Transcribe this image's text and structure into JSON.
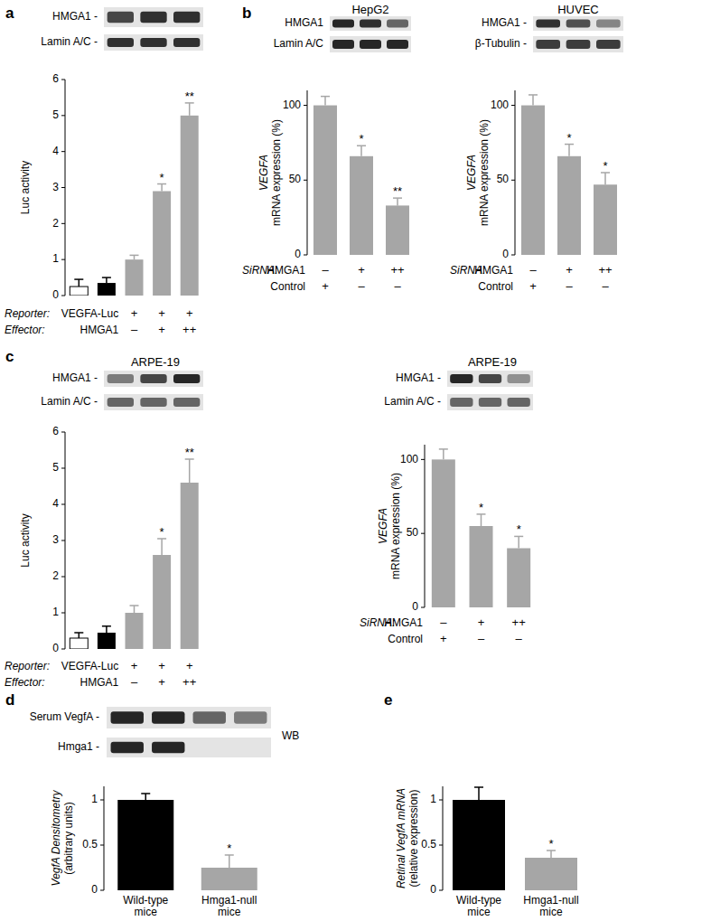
{
  "chart_data": [
    {
      "panel": "a",
      "type": "bar",
      "blots": [
        {
          "label": "HMGA1 -",
          "bands": [
            0.75,
            0.85,
            0.85
          ]
        },
        {
          "label": "Lamin A/C -",
          "bands": [
            0.85,
            0.85,
            0.85
          ]
        }
      ],
      "categories": [
        null,
        null,
        null,
        null,
        null
      ],
      "values": [
        0.25,
        0.35,
        1.0,
        2.9,
        5.0
      ],
      "errors": [
        0.2,
        0.15,
        0.12,
        0.2,
        0.35
      ],
      "colors": [
        "#ffffff",
        "#000000",
        "#a6a6a6",
        "#a6a6a6",
        "#a6a6a6"
      ],
      "significance": [
        null,
        null,
        null,
        "*",
        "**"
      ],
      "ylim": [
        0,
        6
      ],
      "yticks": [
        0,
        1,
        2,
        3,
        4,
        5,
        6
      ],
      "y_label": [
        "Luc activity"
      ],
      "conditions": [
        {
          "label": "Reporter:",
          "item": "VEGFA-Luc",
          "marks": [
            null,
            null,
            "+",
            "+",
            "+"
          ]
        },
        {
          "label": "Effector:",
          "item": "HMGA1",
          "marks": [
            null,
            null,
            "–",
            "+",
            "++"
          ]
        }
      ]
    },
    {
      "panel": "b",
      "type": "bar",
      "title": "HepG2",
      "blots": [
        {
          "label": "HMGA1",
          "bands": [
            0.9,
            0.85,
            0.6
          ]
        },
        {
          "label": "Lamin A/C",
          "bands": [
            0.9,
            0.9,
            0.9
          ]
        }
      ],
      "categories": [
        null,
        null,
        null
      ],
      "values": [
        100,
        66,
        33
      ],
      "errors": [
        6,
        7,
        5
      ],
      "colors": [
        "#a6a6a6",
        "#a6a6a6",
        "#a6a6a6"
      ],
      "significance": [
        null,
        "*",
        "**"
      ],
      "ylim": [
        0,
        110
      ],
      "yticks": [
        0,
        50,
        100
      ],
      "y_label": [
        "VEGFA",
        "mRNA expression (%)"
      ],
      "conditions": [
        {
          "label": "SiRNA:",
          "item": "HMGA1",
          "marks": [
            "–",
            "+",
            "++"
          ]
        },
        {
          "item": "Control",
          "marks": [
            "+",
            "–",
            "–"
          ]
        }
      ]
    },
    {
      "type": "bar",
      "title": "HUVEC",
      "blots": [
        {
          "label": "HMGA1 -",
          "bands": [
            0.85,
            0.7,
            0.45
          ]
        },
        {
          "label": "β-Tubulin -",
          "bands": [
            0.8,
            0.8,
            0.8
          ]
        }
      ],
      "categories": [
        null,
        null,
        null
      ],
      "values": [
        100,
        66,
        47
      ],
      "errors": [
        7,
        8,
        8
      ],
      "colors": [
        "#a6a6a6",
        "#a6a6a6",
        "#a6a6a6"
      ],
      "significance": [
        null,
        "*",
        "*"
      ],
      "ylim": [
        0,
        110
      ],
      "yticks": [
        0,
        50,
        100
      ],
      "y_label": [
        "VEGFA",
        "mRNA expression (%)"
      ],
      "conditions": [
        {
          "label": "SiRNA:",
          "item": "HMGA1",
          "marks": [
            "–",
            "+",
            "++"
          ]
        },
        {
          "item": "Control",
          "marks": [
            "+",
            "–",
            "–"
          ]
        }
      ]
    },
    {
      "panel": "c",
      "type": "bar",
      "title": "ARPE-19",
      "blots": [
        {
          "label": "HMGA1 -",
          "bands": [
            0.5,
            0.75,
            0.9
          ]
        },
        {
          "label": "Lamin A/C -",
          "bands": [
            0.6,
            0.6,
            0.6
          ]
        }
      ],
      "categories": [
        null,
        null,
        null,
        null,
        null
      ],
      "values": [
        0.3,
        0.45,
        1.0,
        2.6,
        4.6
      ],
      "errors": [
        0.15,
        0.18,
        0.2,
        0.45,
        0.65
      ],
      "colors": [
        "#ffffff",
        "#000000",
        "#a6a6a6",
        "#a6a6a6",
        "#a6a6a6"
      ],
      "significance": [
        null,
        null,
        null,
        "*",
        "**"
      ],
      "ylim": [
        0,
        6
      ],
      "yticks": [
        0,
        1,
        2,
        3,
        4,
        5,
        6
      ],
      "y_label": [
        "Luc activity"
      ],
      "conditions": [
        {
          "label": "Reporter:",
          "item": "VEGFA-Luc",
          "marks": [
            null,
            null,
            "+",
            "+",
            "+"
          ]
        },
        {
          "label": "Effector:",
          "item": "HMGA1",
          "marks": [
            null,
            null,
            "–",
            "+",
            "++"
          ]
        }
      ]
    },
    {
      "type": "bar",
      "title": "ARPE-19",
      "blots": [
        {
          "label": "HMGA1 -",
          "bands": [
            0.9,
            0.75,
            0.4
          ]
        },
        {
          "label": "Lamin A/C -",
          "bands": [
            0.6,
            0.6,
            0.6
          ]
        }
      ],
      "categories": [
        null,
        null,
        null
      ],
      "values": [
        100,
        55,
        40
      ],
      "errors": [
        7,
        8,
        8
      ],
      "colors": [
        "#a6a6a6",
        "#a6a6a6",
        "#a6a6a6"
      ],
      "significance": [
        null,
        "*",
        "*"
      ],
      "ylim": [
        0,
        110
      ],
      "yticks": [
        0,
        50,
        100
      ],
      "y_label": [
        "VEGFA",
        "mRNA expression (%)"
      ],
      "conditions": [
        {
          "label": "SiRNA:",
          "item": "HMGA1",
          "marks": [
            "–",
            "+",
            "++"
          ]
        },
        {
          "item": "Control",
          "marks": [
            "+",
            "–",
            "–"
          ]
        }
      ]
    },
    {
      "panel": "d",
      "type": "bar",
      "blots": [
        {
          "label": "Serum VegfA -",
          "bands": [
            0.9,
            0.9,
            0.6,
            0.5
          ]
        },
        {
          "label": "Hmga1 -",
          "bands": [
            0.9,
            0.9,
            0,
            0
          ]
        }
      ],
      "blot_note": "WB",
      "categories": [
        "Wild-type mice",
        "Hmga1-null mice"
      ],
      "values": [
        1.0,
        0.25
      ],
      "errors": [
        0.07,
        0.14
      ],
      "colors": [
        "#000000",
        "#a6a6a6"
      ],
      "significance": [
        null,
        "*"
      ],
      "ylim": [
        0,
        1.15
      ],
      "yticks": [
        0,
        0.5,
        1
      ],
      "y_label": [
        "VegfA Densitometry",
        "(arbitrary units)"
      ]
    },
    {
      "panel": "e",
      "type": "bar",
      "categories": [
        "Wild-type mice",
        "Hmga1-null mice"
      ],
      "values": [
        1.0,
        0.36
      ],
      "errors": [
        0.14,
        0.08
      ],
      "colors": [
        "#000000",
        "#a6a6a6"
      ],
      "significance": [
        null,
        "*"
      ],
      "ylim": [
        0,
        1.15
      ],
      "yticks": [
        0,
        0.5,
        1
      ],
      "y_label": [
        "Retinal VegfA mRNA",
        "(relative expression)"
      ]
    }
  ]
}
